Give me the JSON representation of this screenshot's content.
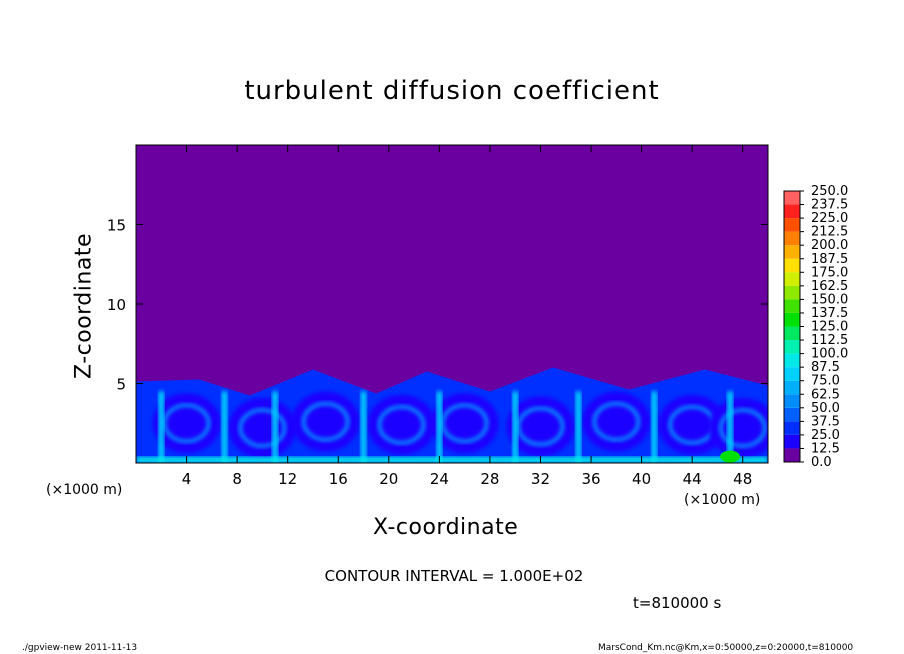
{
  "chart_data": {
    "type": "heatmap",
    "title": "turbulent diffusion coefficient",
    "xlabel": "X-coordinate",
    "ylabel": "Z-coordinate",
    "x_unit": "(×1000 m)",
    "xlim": [
      0,
      50
    ],
    "ylim": [
      0,
      20
    ],
    "x_ticks": [
      4,
      8,
      12,
      16,
      20,
      24,
      28,
      32,
      36,
      40,
      44,
      48
    ],
    "y_ticks": [
      5,
      10,
      15
    ],
    "boundary_layer_top_km": 5.5,
    "color_levels": [
      "0.0",
      "12.5",
      "25.0",
      "37.5",
      "50.0",
      "62.5",
      "75.0",
      "87.5",
      "100.0",
      "112.5",
      "125.0",
      "137.5",
      "150.0",
      "162.5",
      "175.0",
      "187.5",
      "200.0",
      "212.5",
      "225.0",
      "237.5",
      "250.0"
    ],
    "color_fills": [
      "#6a00a0",
      "#1c00ff",
      "#0030ff",
      "#0060ff",
      "#008cff",
      "#00b0ff",
      "#00d0ff",
      "#00e8e8",
      "#00f0b0",
      "#00e860",
      "#00e000",
      "#40e000",
      "#90e800",
      "#d0f000",
      "#ffe000",
      "#ffb000",
      "#ff8000",
      "#ff5000",
      "#ff2020",
      "#ff6060"
    ],
    "contour_interval": "CONTOUR INTERVAL = 1.000E+02",
    "time_label": "t=810000 s"
  },
  "footer": {
    "left": "./gpview-new   2011-11-13",
    "right": "MarsCond_Km.nc@Km,x=0:50000,z=0:20000,t=810000"
  }
}
